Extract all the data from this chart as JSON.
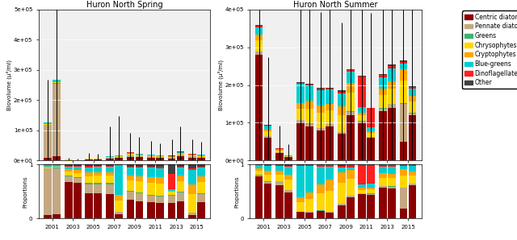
{
  "species": [
    "Centric diatoms",
    "Pennate diatoms",
    "Greens",
    "Chrysophytes",
    "Cryptophytes",
    "Blue-greens",
    "Dinoflagellates",
    "Other"
  ],
  "colors": [
    "#8B0000",
    "#C4A882",
    "#3CB371",
    "#FFD700",
    "#FFA500",
    "#00CED1",
    "#FF2020",
    "#404040"
  ],
  "spring_groups": [
    "2001",
    "2003",
    "2005",
    "2007",
    "2009",
    "2011",
    "2013",
    "2015"
  ],
  "spring_bio": [
    [
      [
        8000,
        110000,
        500,
        2000,
        1000,
        4000,
        600,
        800
      ],
      [
        15000,
        240000,
        800,
        3000,
        1500,
        6000,
        800,
        1200
      ]
    ],
    [
      [
        1200,
        400,
        100,
        300,
        200,
        250,
        50,
        100
      ],
      [
        800,
        300,
        80,
        200,
        150,
        180,
        40,
        80
      ]
    ],
    [
      [
        3000,
        1200,
        200,
        900,
        450,
        700,
        120,
        250
      ],
      [
        2500,
        1000,
        180,
        800,
        400,
        600,
        100,
        220
      ]
    ],
    [
      [
        6000,
        2500,
        350,
        1800,
        900,
        1400,
        200,
        400
      ],
      [
        8000,
        3200,
        420,
        2200,
        1100,
        1700,
        240,
        480
      ]
    ],
    [
      [
        12000,
        5000,
        600,
        3500,
        1700,
        2800,
        350,
        700
      ],
      [
        10000,
        4200,
        520,
        3000,
        1500,
        2400,
        300,
        600
      ]
    ],
    [
      [
        9000,
        3800,
        460,
        2600,
        1300,
        2100,
        260,
        520
      ],
      [
        8000,
        3200,
        400,
        2300,
        1150,
        1850,
        230,
        460
      ]
    ],
    [
      [
        7000,
        3000,
        360,
        2000,
        1000,
        1600,
        200,
        400
      ],
      [
        13000,
        5500,
        660,
        3800,
        1900,
        3000,
        380,
        760
      ]
    ],
    [
      [
        9500,
        4000,
        480,
        2800,
        1400,
        2200,
        280,
        560
      ],
      [
        8500,
        3500,
        430,
        2400,
        1200,
        1950,
        240,
        480
      ]
    ]
  ],
  "spring_errors": [
    [
      140000,
      310000
    ],
    [
      6000,
      5000
    ],
    [
      18000,
      16000
    ],
    [
      100000,
      130000
    ],
    [
      65000,
      55000
    ],
    [
      45000,
      40000
    ],
    [
      55000,
      85000
    ],
    [
      48000,
      42000
    ]
  ],
  "spring_props": [
    [
      [
        0.05,
        0.7,
        0.003,
        0.013,
        0.007,
        0.026,
        0.004,
        0.005
      ],
      [
        0.06,
        0.71,
        0.003,
        0.012,
        0.006,
        0.023,
        0.003,
        0.005
      ]
    ],
    [
      [
        0.55,
        0.08,
        0.018,
        0.055,
        0.036,
        0.046,
        0.009,
        0.018
      ],
      [
        0.5,
        0.07,
        0.015,
        0.06,
        0.04,
        0.05,
        0.01,
        0.02
      ]
    ],
    [
      [
        0.35,
        0.12,
        0.02,
        0.095,
        0.048,
        0.074,
        0.012,
        0.024
      ],
      [
        0.33,
        0.11,
        0.019,
        0.09,
        0.045,
        0.07,
        0.011,
        0.022
      ]
    ],
    [
      [
        0.25,
        0.1,
        0.014,
        0.072,
        0.036,
        0.056,
        0.008,
        0.016
      ],
      [
        0.08,
        0.04,
        0.006,
        0.2,
        0.1,
        0.55,
        0.005,
        0.005
      ]
    ],
    [
      [
        0.3,
        0.13,
        0.016,
        0.17,
        0.085,
        0.13,
        0.016,
        0.033
      ],
      [
        0.28,
        0.12,
        0.015,
        0.18,
        0.09,
        0.135,
        0.017,
        0.034
      ]
    ],
    [
      [
        0.27,
        0.12,
        0.014,
        0.2,
        0.1,
        0.155,
        0.019,
        0.038
      ],
      [
        0.26,
        0.11,
        0.013,
        0.21,
        0.105,
        0.16,
        0.02,
        0.04
      ]
    ],
    [
      [
        0.28,
        0.14,
        0.017,
        0.05,
        0.025,
        0.03,
        0.28,
        0.17
      ],
      [
        0.3,
        0.15,
        0.018,
        0.18,
        0.09,
        0.14,
        0.018,
        0.036
      ]
    ],
    [
      [
        0.06,
        0.04,
        0.005,
        0.33,
        0.165,
        0.26,
        0.033,
        0.066
      ],
      [
        0.28,
        0.14,
        0.017,
        0.19,
        0.095,
        0.148,
        0.019,
        0.038
      ]
    ]
  ],
  "summer_groups": [
    "2001",
    "2003",
    "2005",
    "2007",
    "2009",
    "2011",
    "2013",
    "2015"
  ],
  "summer_bio": [
    [
      [
        280000,
        8000,
        800,
        30000,
        15000,
        20000,
        3500,
        2000
      ],
      [
        60000,
        4000,
        400,
        12000,
        6000,
        9000,
        1500,
        900
      ]
    ],
    [
      [
        20000,
        2000,
        200,
        4000,
        2000,
        3000,
        500,
        400
      ],
      [
        8000,
        800,
        100,
        2000,
        1000,
        1500,
        250,
        200
      ]
    ],
    [
      [
        100000,
        7000,
        700,
        30000,
        15000,
        50000,
        3000,
        1500
      ],
      [
        90000,
        7000,
        700,
        40000,
        20000,
        40000,
        3500,
        1800
      ]
    ],
    [
      [
        80000,
        6000,
        600,
        40000,
        20000,
        40000,
        4000,
        2000
      ],
      [
        90000,
        6500,
        650,
        35000,
        17500,
        38000,
        3500,
        1800
      ]
    ],
    [
      [
        70000,
        5500,
        550,
        45000,
        22500,
        35000,
        4500,
        2300
      ],
      [
        120000,
        9000,
        900,
        50000,
        25000,
        30000,
        5000,
        2500
      ]
    ],
    [
      [
        100000,
        4000,
        400,
        15000,
        7500,
        15000,
        80000,
        3000
      ],
      [
        60000,
        3000,
        300,
        10000,
        5000,
        10000,
        50000,
        2000
      ]
    ],
    [
      [
        130000,
        8000,
        800,
        35000,
        17500,
        30000,
        5500,
        2800
      ],
      [
        140000,
        9000,
        900,
        40000,
        20000,
        35000,
        6000,
        3000
      ]
    ],
    [
      [
        50000,
        100000,
        2000,
        60000,
        30000,
        15000,
        5000,
        3000
      ],
      [
        120000,
        5000,
        500,
        30000,
        15000,
        20000,
        4000,
        2000
      ]
    ]
  ],
  "summer_errors": [
    [
      500000,
      180000
    ],
    [
      60000,
      30000
    ],
    [
      280000,
      250000
    ],
    [
      200000,
      240000
    ],
    [
      180000,
      320000
    ],
    [
      380000,
      250000
    ],
    [
      400000,
      420000
    ],
    [
      490000,
      350000
    ]
  ],
  "summer_props": [
    [
      [
        0.82,
        0.024,
        0.002,
        0.088,
        0.044,
        0.059,
        0.01,
        0.006
      ],
      [
        0.72,
        0.048,
        0.005,
        0.144,
        0.072,
        0.108,
        0.018,
        0.011
      ]
    ],
    [
      [
        0.55,
        0.055,
        0.006,
        0.11,
        0.055,
        0.082,
        0.014,
        0.011
      ],
      [
        0.45,
        0.045,
        0.005,
        0.18,
        0.09,
        0.135,
        0.022,
        0.018
      ]
    ],
    [
      [
        0.12,
        0.008,
        0.001,
        0.175,
        0.088,
        0.58,
        0.017,
        0.009
      ],
      [
        0.11,
        0.009,
        0.001,
        0.24,
        0.12,
        0.48,
        0.021,
        0.011
      ]
    ],
    [
      [
        0.12,
        0.009,
        0.001,
        0.29,
        0.145,
        0.29,
        0.029,
        0.014
      ],
      [
        0.11,
        0.008,
        0.001,
        0.39,
        0.195,
        0.24,
        0.028,
        0.014
      ]
    ],
    [
      [
        0.25,
        0.02,
        0.002,
        0.4,
        0.2,
        0.08,
        0.04,
        0.02
      ],
      [
        0.4,
        0.03,
        0.003,
        0.33,
        0.165,
        0.06,
        0.033,
        0.017
      ]
    ],
    [
      [
        0.48,
        0.019,
        0.002,
        0.072,
        0.036,
        0.072,
        0.38,
        0.014
      ],
      [
        0.45,
        0.018,
        0.002,
        0.075,
        0.038,
        0.075,
        0.35,
        0.013
      ]
    ],
    [
      [
        0.6,
        0.037,
        0.004,
        0.161,
        0.081,
        0.138,
        0.025,
        0.013
      ],
      [
        0.6,
        0.038,
        0.004,
        0.168,
        0.084,
        0.145,
        0.026,
        0.013
      ]
    ],
    [
      [
        0.18,
        0.36,
        0.007,
        0.215,
        0.108,
        0.054,
        0.018,
        0.011
      ],
      [
        0.55,
        0.023,
        0.002,
        0.137,
        0.069,
        0.092,
        0.015,
        0.009
      ]
    ]
  ],
  "title_spring": "Huron North Spring",
  "title_summer": "Huron North Summer",
  "ylabel_bio": "Biovolume (μ³/ml)",
  "ylabel_prop": "Proportions"
}
